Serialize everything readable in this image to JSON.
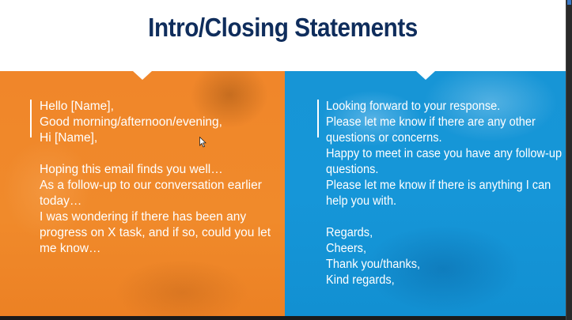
{
  "slide": {
    "title": "Intro/Closing Statements"
  },
  "left_panel": {
    "lines": [
      "Hello [Name],",
      "Good morning/afternoon/evening,",
      "Hi [Name],",
      "",
      "Hoping this email finds you well…",
      "As a follow-up to our conversation earlier",
      "today…",
      "I was wondering if there has been any",
      "progress on X task, and if so, could you let",
      "me know…"
    ]
  },
  "right_panel": {
    "lines": [
      "Looking forward to your response.",
      "Please let me know if there are any other",
      "questions or concerns.",
      "Happy to meet in case you have any follow-up",
      "questions.",
      "Please let me know if there is anything I can",
      "help you with.",
      "",
      "Regards,",
      "Cheers,",
      "Thank you/thanks,",
      "Kind regards,"
    ]
  },
  "colors": {
    "title": "#0f2d5c",
    "left_panel": "#f08a2b",
    "right_panel": "#1696d8",
    "text": "#ffffff"
  }
}
